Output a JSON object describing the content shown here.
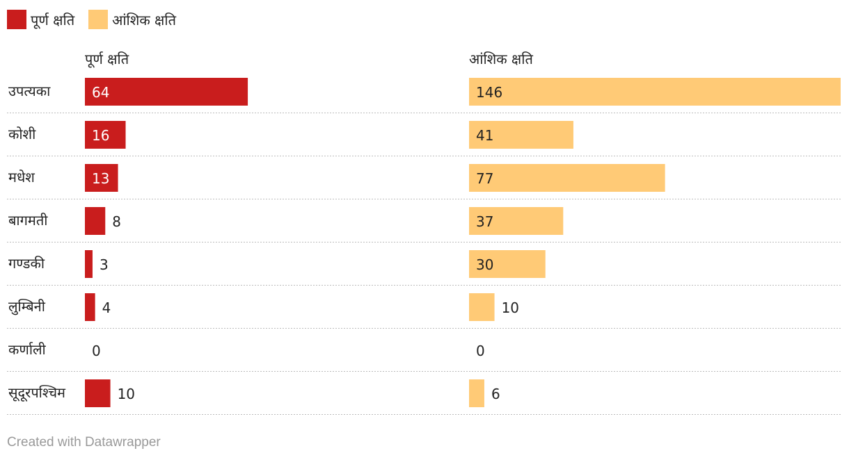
{
  "chart_data": {
    "type": "bar",
    "categories": [
      "उपत्यका",
      "कोशी",
      "मधेश",
      "बागमती",
      "गण्डकी",
      "लुम्बिनी",
      "कर्णाली",
      "सूदूरपश्चिम"
    ],
    "series": [
      {
        "name": "पूर्ण क्षति",
        "values": [
          64,
          16,
          13,
          8,
          3,
          4,
          0,
          10
        ],
        "color": "#c91d1d"
      },
      {
        "name": "आंशिक क्षति",
        "values": [
          146,
          41,
          77,
          37,
          30,
          10,
          0,
          6
        ],
        "color": "#ffca76"
      }
    ],
    "layout_style": "split-bars",
    "legend_position": "top-left",
    "gridlines": "dotted-row-separators"
  },
  "footer": {
    "credit": "Created with Datawrapper"
  }
}
